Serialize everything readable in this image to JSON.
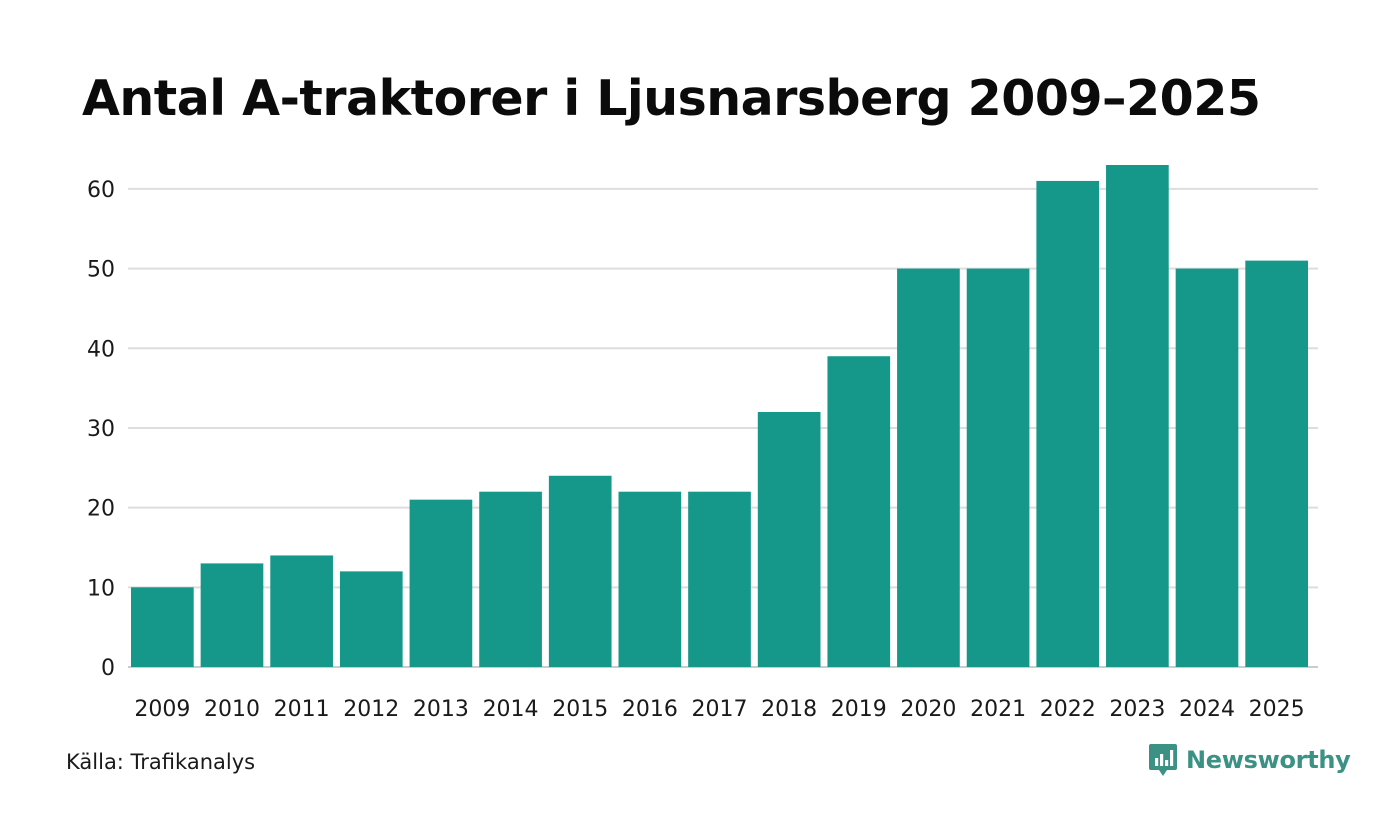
{
  "chart_data": {
    "type": "bar",
    "title": "Antal A-traktorer i Ljusnarsberg 2009–2025",
    "categories": [
      "2009",
      "2010",
      "2011",
      "2012",
      "2013",
      "2014",
      "2015",
      "2016",
      "2017",
      "2018",
      "2019",
      "2020",
      "2021",
      "2022",
      "2023",
      "2024",
      "2025"
    ],
    "values": [
      10,
      13,
      14,
      12,
      21,
      22,
      24,
      22,
      22,
      32,
      39,
      50,
      50,
      61,
      63,
      50,
      51
    ],
    "xlabel": "",
    "ylabel": "",
    "ylim": [
      0,
      63
    ],
    "yticks": [
      0,
      10,
      20,
      30,
      40,
      50,
      60
    ],
    "grid": true,
    "colors": {
      "bar": "#15978a",
      "grid": "#dddddd",
      "baseline": "#cccccc"
    }
  },
  "footer": {
    "source": "Källa: Trafikanalys",
    "brand": "Newsworthy",
    "brand_color": "#3a9184"
  }
}
